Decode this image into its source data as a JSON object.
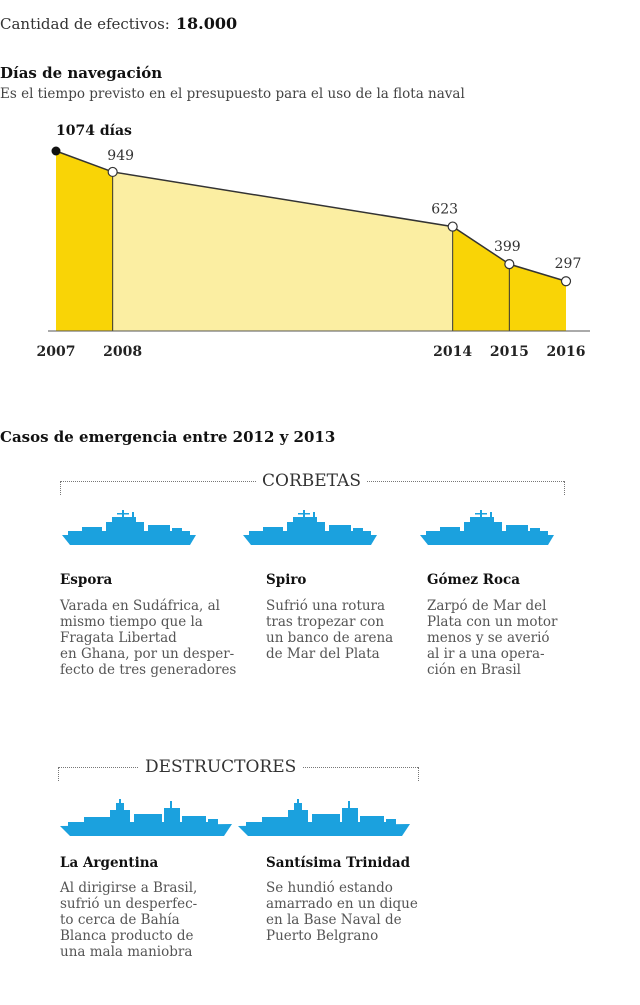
{
  "efectivos": {
    "label": "Cantidad de efectivos:",
    "value": "18.000"
  },
  "navegacion": {
    "title": "Días de navegación",
    "subtitle": "Es el tiempo previsto en el presupuesto para el uso de la flota naval"
  },
  "chart_data": {
    "type": "area",
    "title": "Días de navegación",
    "subtitle": "Es el tiempo previsto en el presupuesto para el uso de la flota naval",
    "x": [
      2007,
      2008,
      2014,
      2015,
      2016
    ],
    "y": [
      1074,
      949,
      623,
      399,
      297
    ],
    "x_labels": [
      "2007",
      "2008",
      "2014",
      "2015",
      "2016"
    ],
    "data_labels": [
      "1074 días",
      "949",
      "623",
      "399",
      "297"
    ],
    "ylim": [
      0,
      1100
    ],
    "colors": {
      "dark": "#F9D406",
      "light": "#FBEEA2",
      "line": "#333333"
    }
  },
  "emergencias": {
    "title": "Casos de emergencia entre 2012 y 2013",
    "corbetas": {
      "label": "CORBETAS",
      "ships": [
        {
          "name": "Espora",
          "desc": "Varada en Sudáfrica, al\nmismo tiempo que la\nFragata Libertad\nen Ghana, por un desper-\nfecto de tres generadores"
        },
        {
          "name": "Spiro",
          "desc": "Sufrió una rotura\ntras tropezar con\nun banco de arena\nde Mar del Plata"
        },
        {
          "name": "Gómez Roca",
          "desc": "Zarpó de Mar del\nPlata con un motor\nmenos y se averió\nal ir a una opera-\nción en Brasil"
        }
      ]
    },
    "destructores": {
      "label": "DESTRUCTORES",
      "ships": [
        {
          "name": "La Argentina",
          "desc": "Al dirigirse a Brasil,\nsufrió un desperfec-\nto cerca de Bahía\nBlanca producto de\nuna mala maniobra"
        },
        {
          "name": "Santísima Trinidad",
          "desc": "Se hundió estando\namarrado en un dique\nen la Base Naval de\nPuerto Belgrano"
        }
      ]
    },
    "ship_color": "#1BA1DE"
  }
}
